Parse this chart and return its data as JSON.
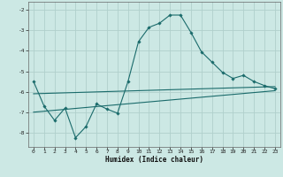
{
  "xlabel": "Humidex (Indice chaleur)",
  "bg_color": "#cce8e4",
  "grid_color": "#b0d0cc",
  "line_color": "#1a6b6b",
  "xlim": [
    -0.5,
    23.5
  ],
  "ylim": [
    -8.7,
    -1.6
  ],
  "yticks": [
    -8,
    -7,
    -6,
    -5,
    -4,
    -3,
    -2
  ],
  "xticks": [
    0,
    1,
    2,
    3,
    4,
    5,
    6,
    7,
    8,
    9,
    10,
    11,
    12,
    13,
    14,
    15,
    16,
    17,
    18,
    19,
    20,
    21,
    22,
    23
  ],
  "main_x": [
    0,
    1,
    2,
    3,
    4,
    5,
    6,
    7,
    8,
    9,
    10,
    11,
    12,
    13,
    14,
    15,
    16,
    17,
    18,
    19,
    20,
    21,
    22,
    23
  ],
  "main_y": [
    -5.5,
    -6.7,
    -7.4,
    -6.8,
    -8.25,
    -7.7,
    -6.6,
    -6.85,
    -7.05,
    -5.5,
    -3.55,
    -2.85,
    -2.65,
    -2.25,
    -2.25,
    -3.1,
    -4.05,
    -4.55,
    -5.05,
    -5.35,
    -5.2,
    -5.5,
    -5.7,
    -5.85
  ],
  "line2_x": [
    0,
    23
  ],
  "line2_y": [
    -6.1,
    -5.75
  ],
  "line3_x": [
    0,
    23
  ],
  "line3_y": [
    -7.0,
    -5.95
  ]
}
